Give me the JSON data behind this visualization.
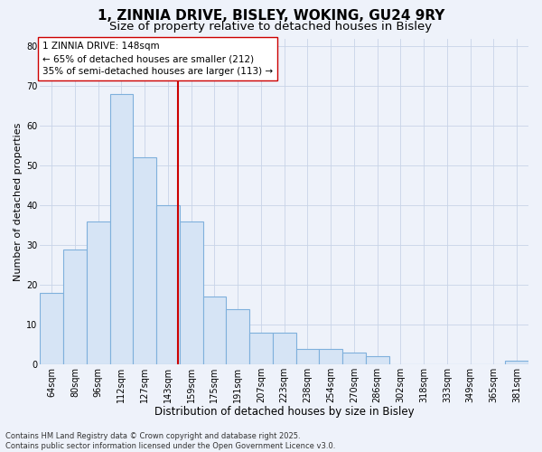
{
  "title": "1, ZINNIA DRIVE, BISLEY, WOKING, GU24 9RY",
  "subtitle": "Size of property relative to detached houses in Bisley",
  "xlabel": "Distribution of detached houses by size in Bisley",
  "ylabel": "Number of detached properties",
  "bar_labels": [
    "64sqm",
    "80sqm",
    "96sqm",
    "112sqm",
    "127sqm",
    "143sqm",
    "159sqm",
    "175sqm",
    "191sqm",
    "207sqm",
    "223sqm",
    "238sqm",
    "254sqm",
    "270sqm",
    "286sqm",
    "302sqm",
    "318sqm",
    "333sqm",
    "349sqm",
    "365sqm",
    "381sqm"
  ],
  "bar_values": [
    18,
    29,
    36,
    68,
    52,
    40,
    36,
    17,
    14,
    8,
    8,
    4,
    4,
    3,
    2,
    0,
    0,
    0,
    0,
    0,
    1
  ],
  "bar_fill_color": "#d6e4f5",
  "bar_edge_color": "#7fb0dc",
  "grid_color": "#c8d4e8",
  "background_color": "#ffffff",
  "fig_background_color": "#eef2fa",
  "vline_x": 5.43,
  "vline_color": "#cc0000",
  "annotation_text": "1 ZINNIA DRIVE: 148sqm\n← 65% of detached houses are smaller (212)\n35% of semi-detached houses are larger (113) →",
  "annotation_box_facecolor": "#ffffff",
  "annotation_box_edgecolor": "#cc0000",
  "ylim": [
    0,
    82
  ],
  "yticks": [
    0,
    10,
    20,
    30,
    40,
    50,
    60,
    70,
    80
  ],
  "footnote": "Contains HM Land Registry data © Crown copyright and database right 2025.\nContains public sector information licensed under the Open Government Licence v3.0.",
  "title_fontsize": 11,
  "subtitle_fontsize": 9.5,
  "xlabel_fontsize": 8.5,
  "ylabel_fontsize": 8,
  "tick_fontsize": 7,
  "annotation_fontsize": 7.5,
  "footnote_fontsize": 6
}
